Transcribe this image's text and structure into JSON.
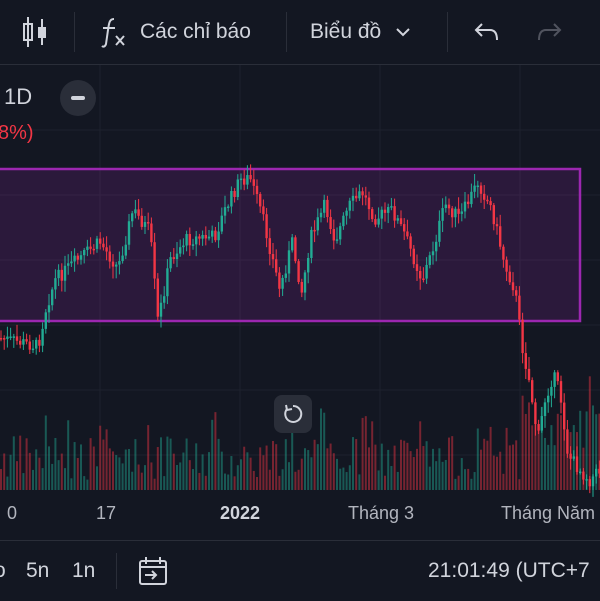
{
  "toolbar": {
    "indicators_label": "Các chỉ báo",
    "chart_type_label": "Biểu đồ"
  },
  "legend": {
    "interval": "1D",
    "change": "8%)"
  },
  "colors": {
    "background": "#131722",
    "up": "#22ab94",
    "down": "#f23645",
    "range_box": "#9c27b0"
  },
  "chart_data": {
    "type": "candlestick",
    "x_tick_labels": [
      "0",
      "17",
      "2022",
      "Tháng 3",
      "Tháng Năm"
    ],
    "volume_bars": true
  },
  "bottom_bar": {
    "range_1": "o",
    "range_2": "5n",
    "range_3": "1n",
    "time": "21:01:49 (UTC+7"
  }
}
